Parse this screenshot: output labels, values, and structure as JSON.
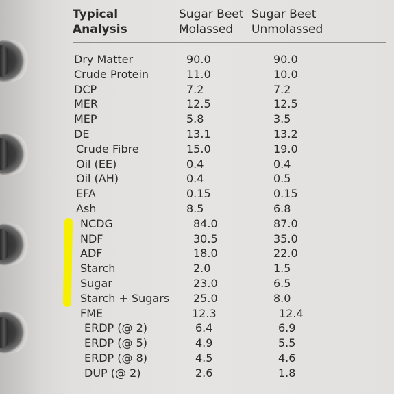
{
  "header": {
    "col1_line1": "Typical",
    "col1_line2": "Analysis",
    "col2_line1": "Sugar Beet",
    "col2_line2": "Molassed",
    "col3_line1": "Sugar Beet",
    "col3_line2": "Unmolassed"
  },
  "rows": [
    {
      "label": "Dry Matter",
      "molassed": "90.0",
      "unmolassed": "90.0"
    },
    {
      "label": "Crude Protein",
      "molassed": "11.0",
      "unmolassed": "10.0"
    },
    {
      "label": "DCP",
      "molassed": "7.2",
      "unmolassed": "7.2"
    },
    {
      "label": "MER",
      "molassed": "12.5",
      "unmolassed": "12.5"
    },
    {
      "label": "MEP",
      "molassed": "5.8",
      "unmolassed": "3.5"
    },
    {
      "label": "DE",
      "molassed": "13.1",
      "unmolassed": "13.2"
    },
    {
      "label": "Crude Fibre",
      "molassed": "15.0",
      "unmolassed": "19.0"
    },
    {
      "label": "Oil (EE)",
      "molassed": "0.4",
      "unmolassed": "0.4"
    },
    {
      "label": "Oil (AH)",
      "molassed": "0.4",
      "unmolassed": "0.5"
    },
    {
      "label": "EFA",
      "molassed": "0.15",
      "unmolassed": "0.15"
    },
    {
      "label": "Ash",
      "molassed": "8.5",
      "unmolassed": "6.8"
    },
    {
      "label": "NCDG",
      "molassed": "84.0",
      "unmolassed": "87.0"
    },
    {
      "label": "NDF",
      "molassed": "30.5",
      "unmolassed": "35.0"
    },
    {
      "label": "ADF",
      "molassed": "18.0",
      "unmolassed": "22.0"
    },
    {
      "label": "Starch",
      "molassed": "2.0",
      "unmolassed": "1.5"
    },
    {
      "label": "Sugar",
      "molassed": "23.0",
      "unmolassed": "6.5"
    },
    {
      "label": "Starch + Sugars",
      "molassed": "25.0",
      "unmolassed": "8.0"
    },
    {
      "label": "FME",
      "molassed": "12.3",
      "unmolassed": "12.4"
    },
    {
      "label": "ERDP (@ 2)",
      "molassed": "6.4",
      "unmolassed": "6.9"
    },
    {
      "label": "ERDP (@ 5)",
      "molassed": "4.9",
      "unmolassed": "5.5"
    },
    {
      "label": "ERDP (@ 8)",
      "molassed": "4.5",
      "unmolassed": "4.6"
    },
    {
      "label": "DUP (@ 2)",
      "molassed": "2.6",
      "unmolassed": "1.8"
    }
  ],
  "colors": {
    "highlight": "#f6f000",
    "text": "#2c2c2c",
    "paper": "#e4e2e0"
  },
  "icons": [
    "binder-ring-icon",
    "binder-hole-icon",
    "highlighter-mark-icon"
  ]
}
